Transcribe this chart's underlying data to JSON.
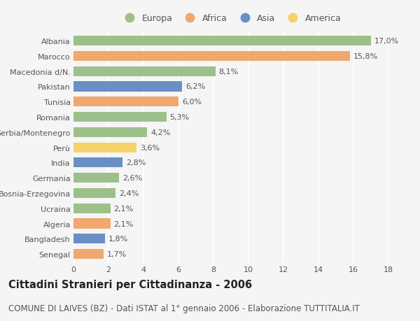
{
  "categories": [
    "Albania",
    "Marocco",
    "Macedonia d/N.",
    "Pakistan",
    "Tunisia",
    "Romania",
    "Serbia/Montenegro",
    "Perù",
    "India",
    "Germania",
    "Bosnia-Erzegovina",
    "Ucraina",
    "Algeria",
    "Bangladesh",
    "Senegal"
  ],
  "values": [
    17.0,
    15.8,
    8.1,
    6.2,
    6.0,
    5.3,
    4.2,
    3.6,
    2.8,
    2.6,
    2.4,
    2.1,
    2.1,
    1.8,
    1.7
  ],
  "continents": [
    "Europa",
    "Africa",
    "Europa",
    "Asia",
    "Africa",
    "Europa",
    "Europa",
    "America",
    "Asia",
    "Europa",
    "Europa",
    "Europa",
    "Africa",
    "Asia",
    "Africa"
  ],
  "continent_colors": {
    "Europa": "#9DC08B",
    "Africa": "#F0A86E",
    "Asia": "#6A8FC4",
    "America": "#F5D26A"
  },
  "legend_order": [
    "Europa",
    "Africa",
    "Asia",
    "America"
  ],
  "xlim": [
    0,
    18
  ],
  "xticks": [
    0,
    2,
    4,
    6,
    8,
    10,
    12,
    14,
    16,
    18
  ],
  "title": "Cittadini Stranieri per Cittadinanza - 2006",
  "subtitle": "COMUNE DI LAIVES (BZ) - Dati ISTAT al 1° gennaio 2006 - Elaborazione TUTTITALIA.IT",
  "bg_color": "#f5f5f5",
  "bar_height": 0.65,
  "title_fontsize": 10.5,
  "subtitle_fontsize": 8.5,
  "label_fontsize": 8,
  "tick_fontsize": 8,
  "legend_fontsize": 9
}
